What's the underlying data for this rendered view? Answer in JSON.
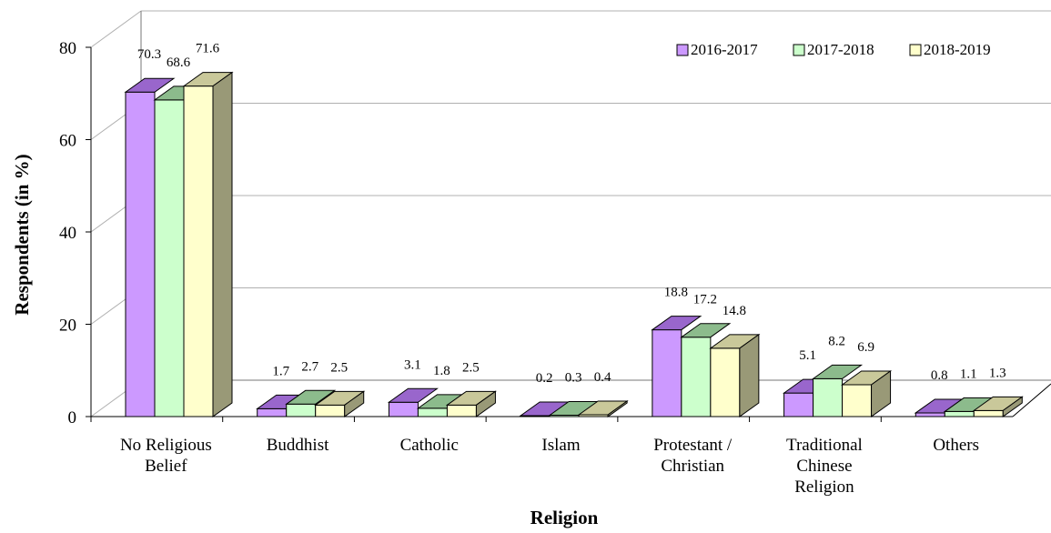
{
  "chart_data": {
    "type": "bar",
    "title": "",
    "xlabel": "Religion",
    "ylabel": "Respondents (in %)",
    "ylim": [
      0,
      80
    ],
    "yticks": [
      "0",
      "20",
      "40",
      "60",
      "80"
    ],
    "grid": true,
    "legend_position": "top-right",
    "categories": [
      [
        "No Religious",
        "Belief"
      ],
      [
        "Buddhist"
      ],
      [
        "Catholic"
      ],
      [
        "Islam"
      ],
      [
        "Protestant /",
        "Christian"
      ],
      [
        "Traditional",
        "Chinese",
        "Religion"
      ],
      [
        "Others"
      ]
    ],
    "series": [
      {
        "name": "2016-2017",
        "values": [
          70.3,
          1.7,
          3.1,
          0.2,
          18.8,
          5.1,
          0.8
        ],
        "labels": [
          "70.3",
          "1.7",
          "3.1",
          "0.2",
          "18.8",
          "5.1",
          "0.8"
        ]
      },
      {
        "name": "2017-2018",
        "values": [
          68.6,
          2.7,
          1.8,
          0.3,
          17.2,
          8.2,
          1.1
        ],
        "labels": [
          "68.6",
          "2.7",
          "1.8",
          "0.3",
          "17.2",
          "8.2",
          "1.1"
        ]
      },
      {
        "name": "2018-2019",
        "values": [
          71.6,
          2.5,
          2.5,
          0.4,
          14.8,
          6.9,
          1.3
        ],
        "labels": [
          "71.6",
          "2.5",
          "2.5",
          "0.4",
          "14.8",
          "6.9",
          "1.3"
        ]
      }
    ]
  },
  "colors": {
    "series_front": [
      "#cc99ff",
      "#ccffcc",
      "#ffffcc"
    ],
    "series_top": [
      "#9966cc",
      "#8cbb8c",
      "#c9c89a"
    ],
    "series_side": [
      "#7a5a99",
      "#7a997a",
      "#999977"
    ],
    "grid": "#b0b0b0",
    "wall": "#ffffff"
  }
}
